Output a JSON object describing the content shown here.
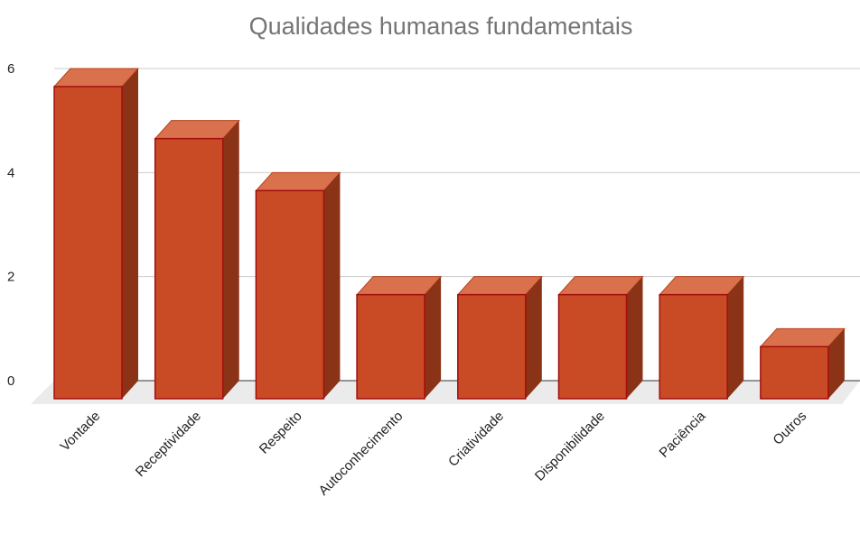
{
  "chart_data": {
    "type": "bar3d",
    "title": "Qualidades humanas fundamentais",
    "categories": [
      "Vontade",
      "Receptividade",
      "Respeito",
      "Autoconhecimento",
      "Criatividade",
      "Disponibilidade",
      "Paciência",
      "Outros"
    ],
    "values": [
      6,
      5,
      4,
      2,
      2,
      2,
      2,
      1
    ],
    "color": "#c94b25",
    "ylim": [
      0,
      6
    ],
    "yticks": [
      0,
      2,
      4,
      6
    ],
    "grid": true
  }
}
